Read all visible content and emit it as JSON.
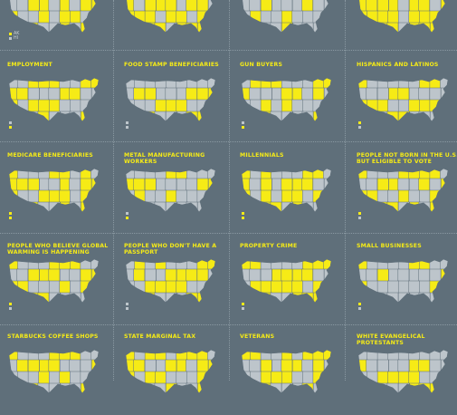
{
  "colors": {
    "background": "#5f6f7a",
    "title": "#f6eb16",
    "highlight": "#f6eb16",
    "state": "#bdc5cb",
    "divider": "#8a99a2"
  },
  "legend": {
    "ak": "AK",
    "hi": "HI"
  },
  "rows": [
    {
      "cells": [
        {
          "title": "",
          "pattern": [
            1,
            1,
            0,
            1,
            0,
            1,
            1,
            0,
            1,
            0,
            0,
            1,
            1,
            0,
            1,
            0,
            1,
            1,
            1,
            0,
            0,
            1,
            0,
            1,
            1,
            0,
            1,
            0,
            1,
            1,
            0,
            0,
            1,
            0,
            1,
            1
          ],
          "legend": true,
          "ak_labels": true
        },
        {
          "title": "",
          "pattern": [
            1,
            1,
            1,
            0,
            1,
            1,
            0,
            1,
            1,
            1,
            0,
            1,
            1,
            1,
            0,
            1,
            1,
            0,
            1,
            1,
            1,
            0,
            1,
            1,
            0,
            1,
            1,
            1,
            0,
            1,
            1,
            0,
            1,
            1,
            1,
            0
          ],
          "legend": false
        },
        {
          "title": "",
          "pattern": [
            0,
            1,
            0,
            0,
            1,
            0,
            0,
            0,
            1,
            0,
            0,
            1,
            0,
            0,
            0,
            1,
            0,
            0,
            0,
            1,
            0,
            0,
            1,
            0,
            0,
            0,
            0,
            1,
            0,
            0,
            0,
            1,
            0,
            0,
            0,
            0
          ],
          "legend": false
        },
        {
          "title": "",
          "pattern": [
            1,
            1,
            1,
            1,
            0,
            1,
            1,
            0,
            1,
            1,
            1,
            1,
            1,
            0,
            1,
            1,
            0,
            1,
            1,
            1,
            1,
            1,
            0,
            1,
            1,
            1,
            1,
            0,
            1,
            1,
            1,
            0,
            1,
            1,
            1,
            1
          ],
          "legend": false
        }
      ]
    },
    {
      "cells": [
        {
          "title": "EMPLOYMENT",
          "pattern": [
            0,
            0,
            1,
            1,
            1,
            0,
            0,
            1,
            1,
            1,
            1,
            0,
            0,
            0,
            1,
            1,
            0,
            0,
            1,
            0,
            1,
            1,
            1,
            0,
            0,
            0,
            1,
            1,
            0,
            0,
            1,
            0,
            0,
            0,
            1,
            1
          ],
          "legend": true
        },
        {
          "title": "FOOD STAMP BENEFICIARIES",
          "pattern": [
            0,
            0,
            0,
            0,
            0,
            0,
            0,
            0,
            0,
            0,
            1,
            1,
            0,
            0,
            0,
            1,
            1,
            1,
            0,
            0,
            0,
            1,
            1,
            1,
            0,
            0,
            0,
            0,
            1,
            1,
            0,
            0,
            0,
            1,
            1,
            1
          ],
          "legend": true
        },
        {
          "title": "GUN BUYERS",
          "pattern": [
            0,
            1,
            1,
            1,
            0,
            0,
            0,
            1,
            1,
            1,
            0,
            0,
            0,
            1,
            1,
            0,
            1,
            0,
            0,
            0,
            1,
            0,
            1,
            0,
            0,
            0,
            1,
            0,
            1,
            1,
            0,
            0,
            0,
            0,
            1,
            0
          ],
          "legend": true
        },
        {
          "title": "HISPANICS AND LATINOS",
          "pattern": [
            1,
            0,
            0,
            0,
            0,
            0,
            1,
            1,
            0,
            0,
            0,
            0,
            1,
            1,
            0,
            0,
            0,
            0,
            1,
            1,
            1,
            0,
            0,
            1,
            1,
            1,
            1,
            0,
            0,
            0,
            1,
            1,
            0,
            0,
            0,
            1
          ],
          "legend": true
        }
      ]
    },
    {
      "cells": [
        {
          "title": "MEDICARE BENEFICIARIES",
          "pattern": [
            1,
            0,
            0,
            0,
            1,
            1,
            0,
            1,
            0,
            1,
            1,
            1,
            0,
            0,
            1,
            0,
            1,
            1,
            1,
            0,
            0,
            1,
            1,
            1,
            0,
            1,
            0,
            0,
            1,
            1,
            0,
            0,
            1,
            0,
            1,
            1
          ],
          "legend": true
        },
        {
          "title": "METAL MANUFACTURING WORKERS",
          "pattern": [
            0,
            0,
            0,
            0,
            1,
            1,
            0,
            0,
            0,
            1,
            1,
            1,
            0,
            0,
            0,
            0,
            1,
            1,
            0,
            1,
            0,
            0,
            1,
            0,
            0,
            0,
            0,
            0,
            1,
            0,
            0,
            0,
            0,
            0,
            0,
            0
          ],
          "legend": true
        },
        {
          "title": "MILLENNIALS",
          "pattern": [
            1,
            0,
            1,
            0,
            0,
            0,
            1,
            1,
            0,
            1,
            0,
            1,
            0,
            1,
            1,
            1,
            0,
            0,
            1,
            0,
            1,
            0,
            1,
            1,
            0,
            1,
            1,
            1,
            0,
            1,
            1,
            0,
            1,
            0,
            0,
            0
          ],
          "legend": true
        },
        {
          "title": "PEOPLE NOT BORN IN THE U.S. BUT ELIGIBLE TO VOTE",
          "pattern": [
            1,
            0,
            0,
            0,
            1,
            1,
            1,
            1,
            0,
            0,
            0,
            1,
            1,
            0,
            0,
            1,
            0,
            1,
            1,
            1,
            0,
            0,
            1,
            0,
            0,
            1,
            1,
            0,
            1,
            1,
            1,
            0,
            1,
            0,
            1,
            1
          ],
          "legend": true
        }
      ]
    },
    {
      "cells": [
        {
          "title": "PEOPLE WHO BELIEVE GLOBAL WARMING IS HAPPENING",
          "pattern": [
            1,
            0,
            0,
            0,
            1,
            1,
            1,
            0,
            0,
            0,
            0,
            1,
            1,
            1,
            0,
            0,
            1,
            1,
            1,
            1,
            0,
            0,
            0,
            1,
            0,
            1,
            0,
            0,
            0,
            1,
            1,
            0,
            0,
            0,
            0,
            1
          ],
          "legend": true
        },
        {
          "title": "PEOPLE WHO DON'T HAVE A PASSPORT",
          "pattern": [
            0,
            1,
            0,
            1,
            0,
            0,
            0,
            1,
            1,
            0,
            1,
            0,
            0,
            1,
            1,
            1,
            1,
            0,
            0,
            0,
            1,
            1,
            1,
            1,
            0,
            0,
            1,
            1,
            1,
            1,
            0,
            0,
            0,
            1,
            1,
            0
          ],
          "legend": true
        },
        {
          "title": "PROPERTY CRIME",
          "pattern": [
            1,
            1,
            0,
            0,
            0,
            0,
            1,
            1,
            1,
            0,
            0,
            0,
            1,
            1,
            1,
            1,
            0,
            0,
            0,
            1,
            1,
            1,
            1,
            1,
            0,
            1,
            1,
            1,
            1,
            1,
            0,
            0,
            1,
            1,
            1,
            0
          ],
          "legend": true
        },
        {
          "title": "SMALL BUSINESSES",
          "pattern": [
            1,
            0,
            0,
            0,
            0,
            1,
            1,
            0,
            0,
            0,
            0,
            1,
            0,
            0,
            0,
            0,
            0,
            1,
            1,
            0,
            0,
            0,
            0,
            0,
            0,
            1,
            0,
            0,
            0,
            0,
            0,
            0,
            0,
            0,
            0,
            0
          ],
          "legend": true
        }
      ]
    },
    {
      "cells": [
        {
          "title": "STARBUCKS COFFEE SHOPS",
          "pattern": [
            1,
            0,
            0,
            0,
            1,
            1,
            1,
            0,
            0,
            0,
            1,
            1,
            1,
            1,
            0,
            0,
            0,
            1,
            0,
            0,
            0,
            1,
            0,
            1,
            0,
            0,
            0,
            0,
            1,
            1,
            0,
            0,
            0,
            0,
            1,
            1
          ],
          "legend": false
        },
        {
          "title": "STATE MARGINAL TAX",
          "pattern": [
            1,
            0,
            1,
            1,
            0,
            1,
            1,
            1,
            0,
            1,
            1,
            0,
            0,
            1,
            1,
            0,
            1,
            1,
            1,
            0,
            1,
            1,
            0,
            0,
            0,
            1,
            0,
            1,
            1,
            0,
            0,
            1,
            0,
            0,
            1,
            1
          ],
          "legend": false
        },
        {
          "title": "VETERANS",
          "pattern": [
            1,
            1,
            0,
            0,
            1,
            0,
            1,
            1,
            1,
            0,
            0,
            1,
            0,
            1,
            1,
            0,
            1,
            0,
            0,
            0,
            1,
            1,
            1,
            0,
            0,
            1,
            1,
            0,
            0,
            1,
            0,
            0,
            0,
            1,
            0,
            0
          ],
          "legend": false
        },
        {
          "title": "WHITE EVANGELICAL PROTESTANTS",
          "pattern": [
            0,
            0,
            0,
            0,
            0,
            0,
            0,
            0,
            0,
            1,
            0,
            0,
            0,
            0,
            1,
            1,
            0,
            0,
            0,
            0,
            1,
            1,
            1,
            1,
            0,
            0,
            1,
            1,
            1,
            0,
            0,
            0,
            1,
            1,
            1,
            0
          ],
          "legend": false
        }
      ]
    }
  ]
}
